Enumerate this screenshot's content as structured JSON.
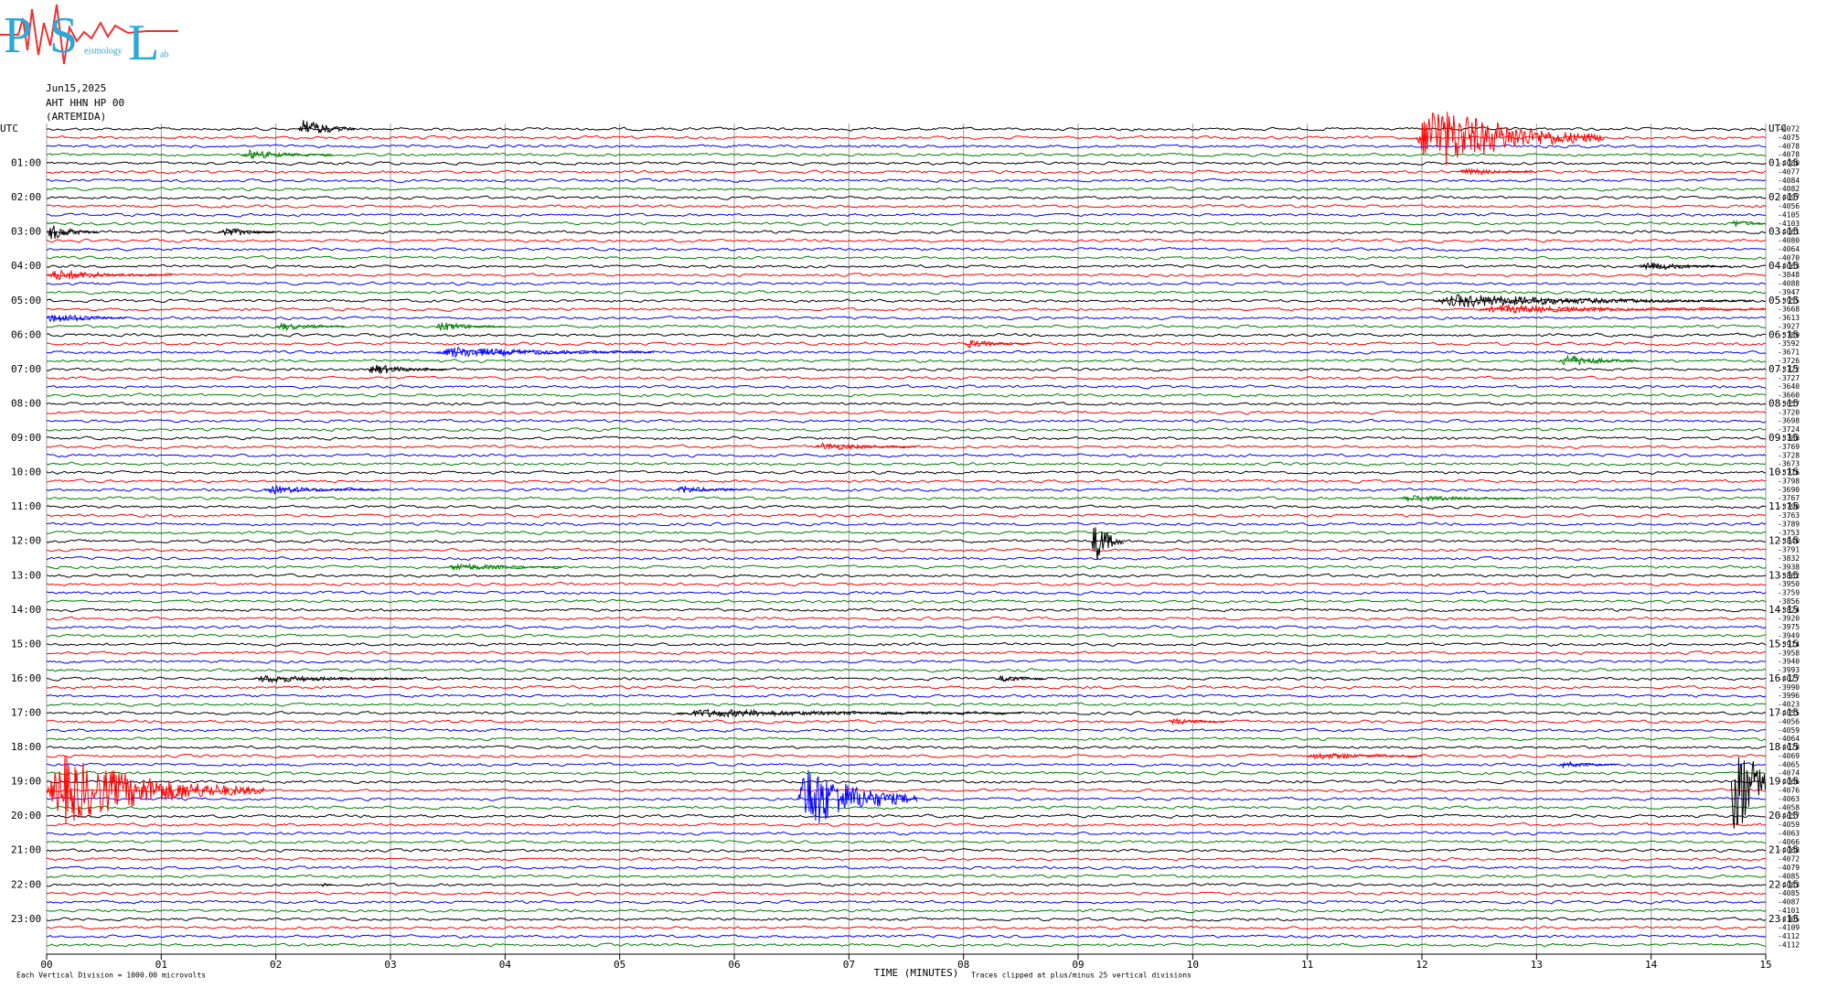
{
  "chart_data": {
    "type": "helicorder",
    "logo": {
      "letters": [
        "P",
        "S",
        "L"
      ],
      "words": [
        "eismology",
        "ab"
      ]
    },
    "header": [
      "Jun15,2025",
      "AHT HHN HP 00",
      "(ARTEMIDA)"
    ],
    "left_labels": [
      "UTC",
      "01:00",
      "02:00",
      "03:00",
      "04:00",
      "05:00",
      "06:00",
      "07:00",
      "08:00",
      "09:00",
      "10:00",
      "11:00",
      "12:00",
      "13:00",
      "14:00",
      "15:00",
      "16:00",
      "17:00",
      "18:00",
      "19:00",
      "20:00",
      "21:00",
      "22:00",
      "23:00"
    ],
    "right_labels": [
      "UTC",
      "01:15",
      "02:15",
      "03:15",
      "04:15",
      "05:15",
      "06:15",
      "07:15",
      "08:15",
      "09:15",
      "10:15",
      "11:15",
      "12:15",
      "13:15",
      "14:15",
      "15:15",
      "16:15",
      "17:15",
      "18:15",
      "19:15",
      "20:15",
      "21:15",
      "22:15",
      "23:15"
    ],
    "trace_offsets": [
      -4072,
      -4075,
      -4078,
      -4078,
      -4080,
      -4077,
      -4084,
      -4082,
      -4097,
      -4056,
      -4105,
      -4103,
      -4061,
      -4080,
      -4064,
      -4070,
      -4063,
      -3848,
      -4088,
      -3947,
      -3955,
      -3668,
      -3613,
      -3927,
      -3789,
      -3592,
      -3671,
      -3726,
      -3722,
      -3727,
      -3640,
      -3660,
      -3657,
      -3720,
      -3698,
      -3724,
      -3788,
      -3769,
      -3728,
      -3673,
      -3716,
      -3798,
      -3690,
      -3767,
      -3790,
      -3763,
      -3789,
      -3753,
      -3840,
      -3791,
      -3832,
      -3938,
      -3862,
      -3950,
      -3759,
      -3856,
      -3824,
      -3920,
      -3975,
      -3949,
      -3914,
      -3958,
      -3940,
      -3993,
      -4027,
      -3990,
      -3996,
      -4023,
      -4055,
      -4056,
      -4059,
      -4064,
      -4078,
      -4069,
      -4065,
      -4074,
      -4066,
      -4076,
      -4063,
      -4058,
      -4057,
      -4059,
      -4063,
      -4066,
      -4068,
      -4072,
      -4079,
      -4085,
      -4083,
      -4085,
      -4087,
      -4101,
      -4105,
      -4109,
      -4112,
      -4112
    ],
    "colors": [
      "#000000",
      "#ff0000",
      "#0000ff",
      "#008000"
    ],
    "xlim": [
      0,
      15
    ],
    "xticks": [
      {
        "value": 0,
        "label": "00"
      },
      {
        "value": 1,
        "label": "01"
      },
      {
        "value": 2,
        "label": "02"
      },
      {
        "value": 3,
        "label": "03"
      },
      {
        "value": 4,
        "label": "04"
      },
      {
        "value": 5,
        "label": "05"
      },
      {
        "value": 6,
        "label": "06"
      },
      {
        "value": 7,
        "label": "07"
      },
      {
        "value": 8,
        "label": "08"
      },
      {
        "value": 9,
        "label": "09"
      },
      10,
      11,
      12,
      13,
      14,
      15
    ],
    "grid": true,
    "x_label": "TIME (MINUTES)",
    "scale_note": "Each Vertical Division = 1000.00 microvolts",
    "clip_note": "Traces clipped at plus/minus 25 vertical divisions",
    "events": [
      {
        "trace": 0,
        "start": 2.2,
        "end": 2.7,
        "amplitude": 1.6
      },
      {
        "trace": 3,
        "start": 1.7,
        "end": 2.5,
        "amplitude": 0.7
      },
      {
        "trace": 1,
        "start": 11.95,
        "end": 13.6,
        "amplitude": 5
      },
      {
        "trace": 5,
        "start": 12.3,
        "end": 13.0,
        "amplitude": 0.6
      },
      {
        "trace": 12,
        "start": 0.0,
        "end": 0.45,
        "amplitude": 1.2
      },
      {
        "trace": 12,
        "start": 1.5,
        "end": 2.0,
        "amplitude": 0.8
      },
      {
        "trace": 11,
        "start": 14.7,
        "end": 15,
        "amplitude": 0.6
      },
      {
        "trace": 16,
        "start": 13.9,
        "end": 14.7,
        "amplitude": 0.7
      },
      {
        "trace": 17,
        "start": 0.0,
        "end": 1.1,
        "amplitude": 0.8
      },
      {
        "trace": 20,
        "start": 12.1,
        "end": 14.9,
        "amplitude": 1.0
      },
      {
        "trace": 21,
        "start": 12.5,
        "end": 15,
        "amplitude": 0.6
      },
      {
        "trace": 22,
        "start": 0.0,
        "end": 0.7,
        "amplitude": 0.8
      },
      {
        "trace": 23,
        "start": 2.0,
        "end": 2.6,
        "amplitude": 0.6
      },
      {
        "trace": 23,
        "start": 3.4,
        "end": 4.0,
        "amplitude": 0.7
      },
      {
        "trace": 25,
        "start": 8.0,
        "end": 8.6,
        "amplitude": 0.6
      },
      {
        "trace": 26,
        "start": 3.4,
        "end": 5.3,
        "amplitude": 0.8
      },
      {
        "trace": 27,
        "start": 13.2,
        "end": 13.9,
        "amplitude": 1.0
      },
      {
        "trace": 28,
        "start": 2.8,
        "end": 3.5,
        "amplitude": 0.8
      },
      {
        "trace": 37,
        "start": 6.7,
        "end": 7.6,
        "amplitude": 0.6
      },
      {
        "trace": 42,
        "start": 1.9,
        "end": 2.9,
        "amplitude": 0.6
      },
      {
        "trace": 42,
        "start": 5.5,
        "end": 6.1,
        "amplitude": 0.6
      },
      {
        "trace": 43,
        "start": 11.8,
        "end": 12.9,
        "amplitude": 0.5
      },
      {
        "trace": 48,
        "start": 9.12,
        "end": 9.4,
        "amplitude": 3.5
      },
      {
        "trace": 51,
        "start": 3.5,
        "end": 4.5,
        "amplitude": 0.6
      },
      {
        "trace": 64,
        "start": 1.8,
        "end": 3.2,
        "amplitude": 0.6
      },
      {
        "trace": 64,
        "start": 8.3,
        "end": 8.7,
        "amplitude": 0.6
      },
      {
        "trace": 68,
        "start": 5.5,
        "end": 8.5,
        "amplitude": 0.6
      },
      {
        "trace": 69,
        "start": 9.8,
        "end": 10.3,
        "amplitude": 0.5
      },
      {
        "trace": 73,
        "start": 11.0,
        "end": 12.0,
        "amplitude": 0.5
      },
      {
        "trace": 74,
        "start": 13.2,
        "end": 13.7,
        "amplitude": 0.5
      },
      {
        "trace": 77,
        "start": 0.0,
        "end": 1.9,
        "amplitude": 5
      },
      {
        "trace": 78,
        "start": 6.55,
        "end": 7.6,
        "amplitude": 5
      },
      {
        "trace": 76,
        "start": 14.7,
        "end": 15,
        "amplitude": 12
      },
      {
        "trace": 88,
        "start": 2.4,
        "end": 2.5,
        "amplitude": 0.4
      }
    ]
  }
}
